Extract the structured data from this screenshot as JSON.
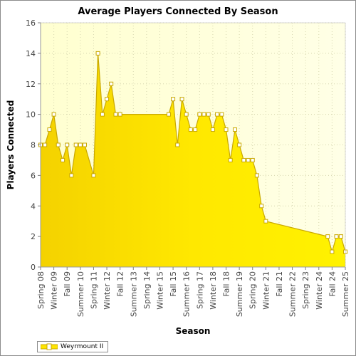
{
  "chart_data": {
    "type": "area",
    "title": "Average Players Connected By Season",
    "xlabel": "Season",
    "ylabel": "Players Connected",
    "ylim": [
      0,
      16
    ],
    "yticks": [
      0,
      2,
      4,
      6,
      8,
      10,
      12,
      14,
      16
    ],
    "categories": [
      "Spring 08",
      "Winter 09",
      "Fall 09",
      "Summer 10",
      "Spring 11",
      "Winter 12",
      "Fall 12",
      "Summer 13",
      "Spring 14",
      "Winter 15",
      "Fall 15",
      "Summer 16",
      "Spring 17",
      "Winter 18",
      "Fall 18",
      "Summer 19",
      "Spring 20",
      "Winter 21",
      "Fall 21",
      "Summer 22",
      "Spring 23",
      "Winter 24",
      "Fall 24",
      "Summer 25"
    ],
    "grid": true,
    "legend_position": "bottom-left",
    "colors": {
      "fill": "#ffe600",
      "line": "#c9a800",
      "plot_background": "#ffffcc",
      "marker_fill": "#ffffff"
    },
    "series": [
      {
        "name": "Weyrmount II",
        "x": [
          0,
          0.33,
          0.67,
          1,
          1.33,
          1.67,
          2,
          2.33,
          2.67,
          3,
          3.33,
          4,
          4.33,
          4.67,
          5,
          5.33,
          5.67,
          6,
          9.67,
          10,
          10.33,
          10.67,
          11,
          11.33,
          11.67,
          12,
          12.33,
          12.67,
          13,
          13.33,
          13.67,
          14,
          14.33,
          14.67,
          15,
          15.33,
          15.67,
          16,
          16.33,
          16.67,
          17,
          21.67,
          22,
          22.33,
          22.67,
          23
        ],
        "values": [
          8,
          8,
          9,
          10,
          8,
          7,
          8,
          6,
          8,
          8,
          8,
          6,
          14,
          10,
          11,
          12,
          10,
          10,
          10,
          11,
          8,
          11,
          10,
          9,
          9,
          10,
          10,
          10,
          9,
          10,
          10,
          9,
          7,
          9,
          8,
          7,
          7,
          7,
          6,
          4,
          3,
          2,
          1,
          2,
          2,
          1
        ]
      }
    ]
  }
}
